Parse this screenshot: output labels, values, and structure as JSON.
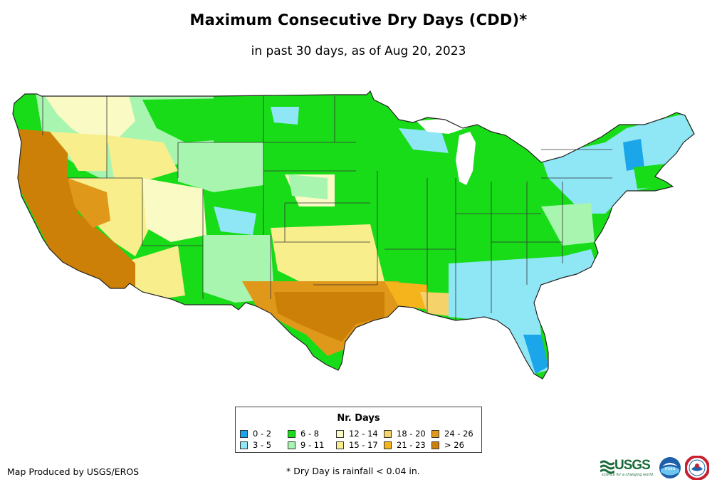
{
  "title": "Maximum Consecutive Dry Days (CDD)*",
  "subtitle": "in past 30 days, as of Aug 20, 2023",
  "legend": {
    "title": "Nr. Days",
    "items": [
      {
        "label": "0 - 2",
        "color": "#1aa6e8"
      },
      {
        "label": "3 - 5",
        "color": "#8fe6f5"
      },
      {
        "label": "6 - 8",
        "color": "#18dc18"
      },
      {
        "label": "9 - 11",
        "color": "#a8f5b0"
      },
      {
        "label": "12 - 14",
        "color": "#fafac4"
      },
      {
        "label": "15 - 17",
        "color": "#f8ee8c"
      },
      {
        "label": "18 - 20",
        "color": "#f5d36a"
      },
      {
        "label": "21 - 23",
        "color": "#f5b41c"
      },
      {
        "label": "24 - 26",
        "color": "#e0981a"
      },
      {
        "label": "> 26",
        "color": "#cc8007"
      }
    ]
  },
  "footer": {
    "producer": "Map Produced by USGS/EROS",
    "note": "* Dry Day is rainfall < 0.04 in."
  },
  "logos": {
    "usgs": "USGS",
    "usgs_tagline": "science for a changing world",
    "noaa": "noaa"
  },
  "regions": [
    {
      "name": "Pacific Coast",
      "cdd_class": "> 26"
    },
    {
      "name": "Texas",
      "cdd_class": "> 26"
    },
    {
      "name": "Great Plains",
      "cdd_class": "6 - 8"
    },
    {
      "name": "Midwest",
      "cdd_class": "6 - 8"
    },
    {
      "name": "Southeast",
      "cdd_class": "3 - 5"
    },
    {
      "name": "New England",
      "cdd_class": "3 - 5"
    },
    {
      "name": "Northern Rockies",
      "cdd_class": "9 - 11"
    },
    {
      "name": "Southern Plains",
      "cdd_class": "15 - 17"
    }
  ]
}
